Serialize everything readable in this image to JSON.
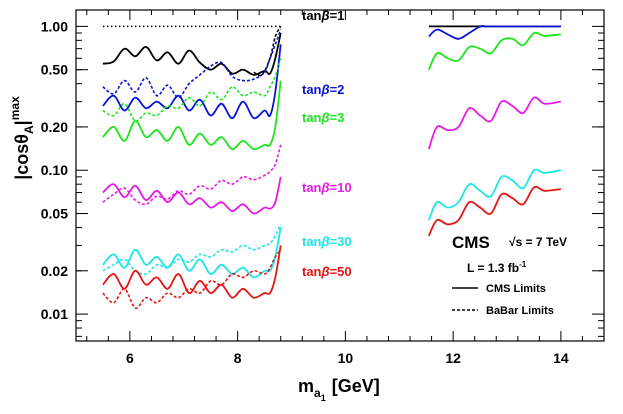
{
  "chart_data": {
    "type": "line",
    "xlabel_main": "m",
    "xlabel_sub1": "a",
    "xlabel_sub2": "1",
    "xlabel_unit": "[GeV]",
    "ylabel_main": "|cosθ",
    "ylabel_sub": "A",
    "ylabel_close": "|",
    "ylabel_sup": "max",
    "xlim": [
      5.0,
      14.8
    ],
    "ylim": [
      0.0065,
      1.3
    ],
    "yscale": "log",
    "x_ticks": [
      6,
      8,
      10,
      12,
      14
    ],
    "x_tick_labels": [
      "6",
      "8",
      "10",
      "12",
      "14"
    ],
    "y_ticks": [
      1.0,
      0.5,
      0.2,
      0.1,
      0.05,
      0.02,
      0.01
    ],
    "y_tick_labels": [
      "1.00",
      "0.50",
      "0.20",
      "0.10",
      "0.05",
      "0.02",
      "0.01"
    ],
    "grid": false,
    "reference_line": {
      "y": 1.0,
      "x": [
        5.5,
        8.8
      ],
      "style": "dotted",
      "color": "#000000"
    },
    "experiment": "CMS",
    "energy_label": "√s = 7 TeV",
    "lumi_label": "L = 1.3 fb",
    "lumi_sup": "-1",
    "legend": [
      {
        "label": "CMS Limits",
        "style": "solid"
      },
      {
        "label": "BaBar Limits",
        "style": "dashed"
      }
    ],
    "series": [
      {
        "name": "tanβ=1",
        "color": "#000000",
        "cms_low": {
          "x": [
            5.5,
            5.7,
            5.9,
            6.1,
            6.3,
            6.5,
            6.7,
            6.9,
            7.1,
            7.3,
            7.5,
            7.7,
            7.9,
            8.1,
            8.3,
            8.5,
            8.6,
            8.7,
            8.8
          ],
          "y": [
            0.55,
            0.57,
            0.7,
            0.62,
            0.72,
            0.58,
            0.66,
            0.55,
            0.68,
            0.56,
            0.5,
            0.55,
            0.47,
            0.5,
            0.46,
            0.49,
            0.47,
            0.6,
            0.9
          ]
        },
        "babar": {
          "x": [
            8.3,
            8.45,
            8.6,
            8.7,
            8.8
          ],
          "y": [
            0.48,
            0.46,
            0.6,
            0.85,
            1.0
          ]
        },
        "cms_high": {
          "x": [
            11.55,
            11.7,
            11.9,
            12.1,
            12.3,
            12.5,
            12.7,
            12.9,
            13.1,
            13.3,
            13.5,
            13.7,
            14.0
          ],
          "y": [
            1.0,
            1.0,
            1.0,
            1.0,
            1.0,
            1.0,
            1.0,
            1.0,
            1.0,
            1.0,
            1.0,
            1.0,
            1.0
          ]
        }
      },
      {
        "name": "tanβ=2",
        "color": "#0a14d8",
        "cms_low": {
          "x": [
            5.5,
            5.7,
            5.9,
            6.1,
            6.3,
            6.5,
            6.7,
            6.9,
            7.1,
            7.3,
            7.5,
            7.7,
            7.9,
            8.1,
            8.3,
            8.5,
            8.6,
            8.7,
            8.8
          ],
          "y": [
            0.28,
            0.33,
            0.26,
            0.32,
            0.27,
            0.3,
            0.27,
            0.33,
            0.26,
            0.31,
            0.24,
            0.29,
            0.23,
            0.3,
            0.23,
            0.26,
            0.24,
            0.35,
            0.75
          ]
        },
        "babar": {
          "x": [
            5.5,
            5.7,
            5.9,
            6.1,
            6.3,
            6.5,
            6.7,
            6.9,
            7.1,
            7.3,
            7.5,
            7.7,
            7.9,
            8.1,
            8.3,
            8.5,
            8.6,
            8.7,
            8.8
          ],
          "y": [
            0.38,
            0.34,
            0.42,
            0.35,
            0.44,
            0.33,
            0.39,
            0.32,
            0.4,
            0.46,
            0.53,
            0.56,
            0.45,
            0.42,
            0.43,
            0.48,
            0.6,
            0.75,
            0.95
          ]
        },
        "cms_high": {
          "x": [
            11.55,
            11.7,
            11.9,
            12.1,
            12.3,
            12.5,
            12.6,
            12.7,
            12.9,
            13.1,
            13.3,
            13.5,
            13.7,
            14.0
          ],
          "y": [
            0.85,
            0.95,
            0.88,
            0.82,
            0.9,
            1.0,
            1.0,
            1.0,
            1.0,
            1.0,
            1.0,
            1.0,
            1.0,
            1.0
          ]
        }
      },
      {
        "name": "tanβ=3",
        "color": "#1ce61c",
        "cms_low": {
          "x": [
            5.5,
            5.7,
            5.9,
            6.1,
            6.3,
            6.5,
            6.7,
            6.9,
            7.1,
            7.3,
            7.5,
            7.7,
            7.9,
            8.1,
            8.3,
            8.5,
            8.6,
            8.7,
            8.8
          ],
          "y": [
            0.17,
            0.2,
            0.16,
            0.22,
            0.17,
            0.19,
            0.16,
            0.2,
            0.15,
            0.18,
            0.15,
            0.17,
            0.14,
            0.16,
            0.14,
            0.15,
            0.15,
            0.2,
            0.42
          ]
        },
        "babar": {
          "x": [
            5.5,
            5.7,
            5.9,
            6.1,
            6.3,
            6.5,
            6.7,
            6.9,
            7.1,
            7.3,
            7.5,
            7.7,
            7.9,
            8.1,
            8.3,
            8.5,
            8.6,
            8.7,
            8.8
          ],
          "y": [
            0.26,
            0.24,
            0.29,
            0.22,
            0.25,
            0.24,
            0.28,
            0.27,
            0.32,
            0.28,
            0.35,
            0.31,
            0.38,
            0.33,
            0.35,
            0.33,
            0.38,
            0.45,
            0.6
          ]
        },
        "cms_high": {
          "x": [
            11.55,
            11.7,
            11.9,
            12.1,
            12.3,
            12.5,
            12.7,
            12.9,
            13.1,
            13.3,
            13.5,
            13.7,
            14.0
          ],
          "y": [
            0.5,
            0.65,
            0.6,
            0.58,
            0.72,
            0.7,
            0.65,
            0.8,
            0.82,
            0.74,
            0.9,
            0.86,
            0.88
          ]
        }
      },
      {
        "name": "tanβ=10",
        "color": "#e61ce6",
        "cms_low": {
          "x": [
            5.5,
            5.7,
            5.9,
            6.1,
            6.3,
            6.5,
            6.7,
            6.9,
            7.1,
            7.3,
            7.5,
            7.7,
            7.9,
            8.1,
            8.3,
            8.5,
            8.6,
            8.7,
            8.8
          ],
          "y": [
            0.07,
            0.08,
            0.065,
            0.078,
            0.062,
            0.072,
            0.06,
            0.07,
            0.058,
            0.064,
            0.055,
            0.06,
            0.052,
            0.058,
            0.05,
            0.055,
            0.054,
            0.06,
            0.09
          ]
        },
        "babar": {
          "x": [
            5.5,
            5.7,
            5.9,
            6.1,
            6.3,
            6.5,
            6.7,
            6.9,
            7.1,
            7.3,
            7.5,
            7.7,
            7.9,
            8.1,
            8.3,
            8.5,
            8.6,
            8.7,
            8.8
          ],
          "y": [
            0.06,
            0.068,
            0.075,
            0.062,
            0.058,
            0.066,
            0.063,
            0.072,
            0.068,
            0.078,
            0.074,
            0.085,
            0.08,
            0.09,
            0.086,
            0.092,
            0.098,
            0.11,
            0.15
          ]
        },
        "cms_high": {
          "x": [
            11.55,
            11.7,
            11.9,
            12.1,
            12.3,
            12.5,
            12.7,
            12.9,
            13.1,
            13.3,
            13.5,
            13.7,
            14.0
          ],
          "y": [
            0.14,
            0.2,
            0.19,
            0.2,
            0.27,
            0.24,
            0.22,
            0.3,
            0.28,
            0.25,
            0.32,
            0.29,
            0.3
          ]
        }
      },
      {
        "name": "tanβ=30",
        "color": "#1ce6e6",
        "cms_low": {
          "x": [
            5.5,
            5.7,
            5.9,
            6.1,
            6.3,
            6.5,
            6.7,
            6.9,
            7.1,
            7.3,
            7.5,
            7.7,
            7.9,
            8.1,
            8.3,
            8.5,
            8.6,
            8.7,
            8.8
          ],
          "y": [
            0.022,
            0.026,
            0.021,
            0.028,
            0.022,
            0.025,
            0.021,
            0.026,
            0.02,
            0.024,
            0.019,
            0.022,
            0.019,
            0.021,
            0.018,
            0.02,
            0.02,
            0.025,
            0.04
          ]
        },
        "babar": {
          "x": [
            5.5,
            5.7,
            5.9,
            6.1,
            6.3,
            6.5,
            6.7,
            6.9,
            7.1,
            7.3,
            7.5,
            7.7,
            7.9,
            8.1,
            8.3,
            8.5,
            8.6,
            8.7,
            8.8
          ],
          "y": [
            0.02,
            0.022,
            0.024,
            0.02,
            0.019,
            0.022,
            0.021,
            0.024,
            0.023,
            0.026,
            0.025,
            0.028,
            0.027,
            0.03,
            0.028,
            0.03,
            0.031,
            0.035,
            0.042
          ]
        },
        "cms_high": {
          "x": [
            11.55,
            11.7,
            11.9,
            12.1,
            12.3,
            12.5,
            12.7,
            12.9,
            13.1,
            13.3,
            13.5,
            13.7,
            14.0
          ],
          "y": [
            0.045,
            0.06,
            0.055,
            0.06,
            0.08,
            0.072,
            0.066,
            0.09,
            0.085,
            0.075,
            0.1,
            0.096,
            0.1
          ]
        }
      },
      {
        "name": "tanβ=50",
        "color": "#e61414",
        "cms_low": {
          "x": [
            5.5,
            5.7,
            5.9,
            6.1,
            6.3,
            6.5,
            6.7,
            6.9,
            7.1,
            7.3,
            7.5,
            7.7,
            7.9,
            8.1,
            8.3,
            8.5,
            8.6,
            8.7,
            8.8
          ],
          "y": [
            0.016,
            0.019,
            0.015,
            0.02,
            0.016,
            0.018,
            0.015,
            0.019,
            0.014,
            0.017,
            0.014,
            0.016,
            0.013,
            0.015,
            0.013,
            0.014,
            0.014,
            0.018,
            0.03
          ]
        },
        "babar": {
          "x": [
            5.5,
            5.7,
            5.9,
            6.1,
            6.3,
            6.5,
            6.7,
            6.9,
            7.1,
            7.3,
            7.5,
            7.7,
            7.9,
            8.1,
            8.3,
            8.5,
            8.6,
            8.7,
            8.8
          ],
          "y": [
            0.014,
            0.012,
            0.015,
            0.011,
            0.013,
            0.012,
            0.014,
            0.013,
            0.015,
            0.014,
            0.017,
            0.016,
            0.019,
            0.018,
            0.02,
            0.019,
            0.021,
            0.025,
            0.028
          ]
        },
        "cms_high": {
          "x": [
            11.55,
            11.7,
            11.9,
            12.1,
            12.3,
            12.5,
            12.7,
            12.9,
            13.1,
            13.3,
            13.5,
            13.7,
            14.0
          ],
          "y": [
            0.035,
            0.045,
            0.042,
            0.045,
            0.06,
            0.055,
            0.05,
            0.068,
            0.064,
            0.058,
            0.076,
            0.072,
            0.074
          ]
        }
      }
    ],
    "label_tanb_prefix": "tan",
    "label_tanb_beta": "β",
    "label_tanb_values": [
      "=1",
      "=2",
      "=3",
      "=10",
      "=30",
      "=50"
    ]
  }
}
